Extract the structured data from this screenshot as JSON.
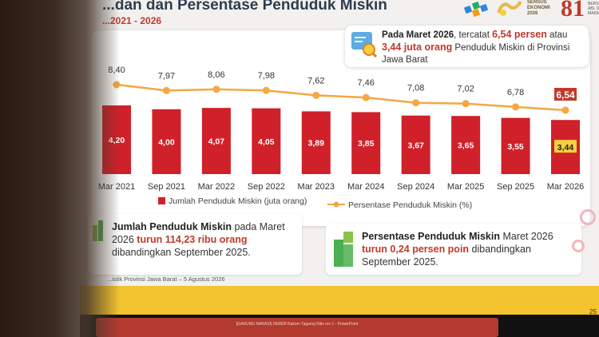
{
  "header": {
    "title": "...dan dan Persentase Penduduk Miskin",
    "subtitle": "...2021 - 2026"
  },
  "logos": {
    "sensus_line1": "SENSUS",
    "sensus_line2": "EKONOMI",
    "sensus_line3": "2026",
    "anniv": "81"
  },
  "callout": {
    "pre": "Pada Maret 2026",
    "mid1": ", tercatat ",
    "pct": "6,54 persen",
    "mid2": " atau ",
    "people": "3,44 juta orang",
    "post": " Penduduk Miskin di Provinsi Jawa Barat"
  },
  "chart_data": {
    "type": "bar",
    "categories": [
      "Mar 2021",
      "Sep 2021",
      "Mar 2022",
      "Sep 2022",
      "Mar 2023",
      "Mar 2024",
      "Sep 2024",
      "Mar 2025",
      "Sep 2025",
      "Mar 2026"
    ],
    "series": [
      {
        "name": "Jumlah Penduduk Miskin (juta orang)",
        "type": "bar",
        "color": "#d0202a",
        "values": [
          4.2,
          4.0,
          4.07,
          4.05,
          3.89,
          3.85,
          3.67,
          3.65,
          3.55,
          3.44
        ],
        "labels": [
          "4,20",
          "4,00",
          "4,07",
          "4,05",
          "3,89",
          "3,85",
          "3,67",
          "3,65",
          "3,55",
          "3,44"
        ]
      },
      {
        "name": "Persentase Penduduk Miskin (%)",
        "type": "line",
        "color": "#f5a742",
        "values": [
          8.4,
          7.97,
          8.06,
          7.98,
          7.62,
          7.46,
          7.08,
          7.02,
          6.78,
          6.54
        ],
        "labels": [
          "8,40",
          "7,97",
          "8,06",
          "7,98",
          "7,62",
          "7,46",
          "7,08",
          "7,02",
          "6,78",
          "6,54"
        ]
      }
    ],
    "legend_position": "bottom"
  },
  "box1": {
    "title": "Jumlah Penduduk Miskin",
    "t1": " pada Maret 2026 ",
    "hl": "turun 114,23 ribu orang",
    "t2": " dibandingkan September 2025."
  },
  "box2": {
    "title": "Persentase Penduduk Miskin",
    "t1": " Maret 2026 ",
    "hl": "turun 0,24 persen poin",
    "t2": " dibandingkan September 2025."
  },
  "source": "...istik Provinsi Jawa Barat – 5 Agustus 2026",
  "taskbar": "[GARUNG NARASI] 050828 Rakom Tagamg Rilis rev 1 - PowerPoint",
  "page_num": "25",
  "colors": {
    "bar": "#d0202a",
    "line": "#f5a742",
    "highlight_bg": "#f4d03f",
    "accent": "#c0392b"
  }
}
